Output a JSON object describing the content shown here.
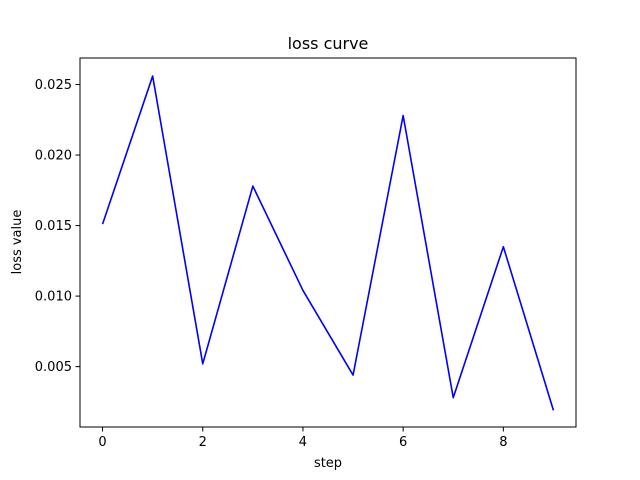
{
  "chart_data": {
    "type": "line",
    "title": "loss curve",
    "xlabel": "step",
    "ylabel": "loss value",
    "xlim": [
      -0.45,
      9.45
    ],
    "ylim": [
      0.00072,
      0.02688
    ],
    "x_ticks": [
      0,
      2,
      4,
      6,
      8
    ],
    "x_tick_labels": [
      "0",
      "2",
      "4",
      "6",
      "8"
    ],
    "y_ticks": [
      0.005,
      0.01,
      0.015,
      0.02,
      0.025
    ],
    "y_tick_labels": [
      "0.005",
      "0.010",
      "0.015",
      "0.020",
      "0.025"
    ],
    "grid": false,
    "legend": "none",
    "series": [
      {
        "color": "#0000ff",
        "x": [
          0,
          1,
          2,
          3,
          4,
          5,
          6,
          7,
          8,
          9
        ],
        "y": [
          0.0151,
          0.0256,
          0.0052,
          0.0178,
          0.0104,
          0.0044,
          0.0228,
          0.0028,
          0.0135,
          0.0019
        ]
      }
    ]
  }
}
